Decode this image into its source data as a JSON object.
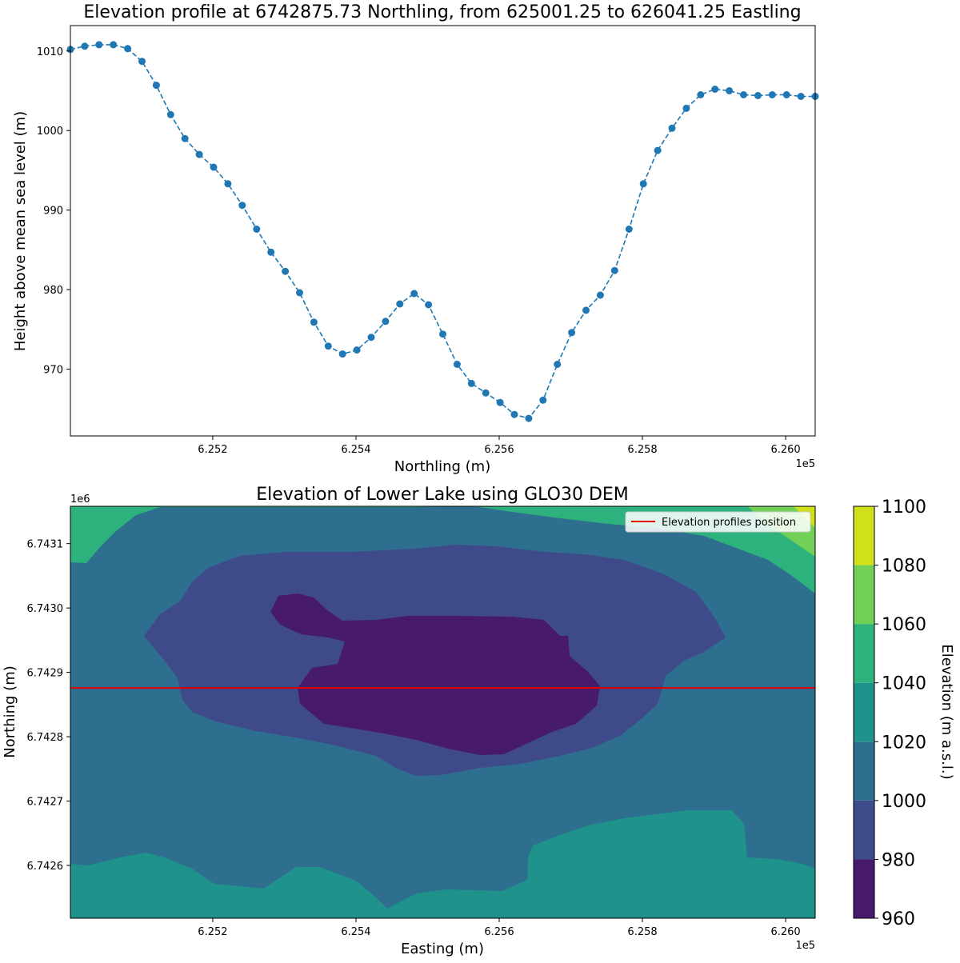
{
  "chart_data": [
    {
      "type": "line",
      "title": "Elevation profile at 6742875.73 Northling, from 625001.25 to 626041.25 Eastling",
      "xlabel": "Northling (m)",
      "ylabel": "Height above mean sea level (m)",
      "x_offset_label": "1e5",
      "xlim": [
        625001.25,
        626041.25
      ],
      "ylim": [
        961.6,
        1013.2
      ],
      "x_ticks": [
        625200,
        625400,
        625600,
        625800,
        626000
      ],
      "x_tick_labels": [
        "6.252",
        "6.254",
        "6.256",
        "6.258",
        "6.260"
      ],
      "y_ticks": [
        970,
        980,
        990,
        1000,
        1010
      ],
      "y_tick_labels": [
        "970",
        "980",
        "990",
        "1000",
        "1010"
      ],
      "series": [
        {
          "color": "#1f77b4",
          "line_style": "dashed",
          "marker": "circle",
          "x": [
            625001.25,
            625021.25,
            625041.25,
            625061.25,
            625081.25,
            625101.25,
            625121.25,
            625141.25,
            625161.25,
            625181.25,
            625201.25,
            625221.25,
            625241.25,
            625261.25,
            625281.25,
            625301.25,
            625321.25,
            625341.25,
            625361.25,
            625381.25,
            625401.25,
            625421.25,
            625441.25,
            625461.25,
            625481.25,
            625501.25,
            625521.25,
            625541.25,
            625561.25,
            625581.25,
            625601.25,
            625621.25,
            625641.25,
            625661.25,
            625681.25,
            625701.25,
            625721.25,
            625741.25,
            625761.25,
            625781.25,
            625801.25,
            625821.25,
            625841.25,
            625861.25,
            625881.25,
            625901.25,
            625921.25,
            625941.25,
            625961.25,
            625981.25,
            626001.25,
            626021.25,
            626041.25
          ],
          "y": [
            1010.2,
            1010.6,
            1010.8,
            1010.8,
            1010.3,
            1008.7,
            1005.7,
            1002.0,
            999.0,
            997.0,
            995.4,
            993.3,
            990.6,
            987.6,
            984.7,
            982.3,
            979.6,
            975.9,
            972.9,
            971.9,
            972.4,
            974.0,
            976.0,
            978.2,
            979.5,
            978.1,
            974.4,
            970.6,
            968.2,
            967.0,
            965.8,
            964.3,
            963.8,
            966.1,
            970.6,
            974.6,
            977.4,
            979.3,
            982.4,
            987.6,
            993.3,
            997.5,
            1000.3,
            1002.8,
            1004.5,
            1005.2,
            1005.0,
            1004.5,
            1004.4,
            1004.5,
            1004.5,
            1004.3,
            1004.3
          ]
        }
      ]
    },
    {
      "type": "heatmap",
      "title": "Elevation of Lower Lake using GLO30 DEM",
      "xlabel": "Easting (m)",
      "ylabel": "Northing (m)",
      "x_offset_label": "1e5",
      "y_offset_label": "1e6",
      "xlim": [
        625001.25,
        626041.25
      ],
      "ylim": [
        6742518,
        6743158
      ],
      "x_ticks": [
        625200,
        625400,
        625600,
        625800,
        626000
      ],
      "x_tick_labels": [
        "6.252",
        "6.254",
        "6.256",
        "6.258",
        "6.260"
      ],
      "y_ticks": [
        6742600,
        6742700,
        6742800,
        6742900,
        6743000,
        6743100
      ],
      "y_tick_labels": [
        "6.7426",
        "6.7427",
        "6.7428",
        "6.7429",
        "6.7430",
        "6.7431"
      ],
      "colorbar_label": "Elevation (m a.s.l.)",
      "levels": [
        960,
        980,
        1000,
        1020,
        1040,
        1060,
        1080,
        1100
      ],
      "level_tick_labels": [
        "960",
        "980",
        "1000",
        "1020",
        "1040",
        "1060",
        "1080",
        "1100"
      ],
      "level_colors": [
        "#481a6c",
        "#3e4a89",
        "#2e6e8e",
        "#20928c",
        "#2db27d",
        "#73d056",
        "#d0e11c"
      ],
      "profile_line": {
        "northing": 6742875.73,
        "color": "#e00000",
        "legend_label": "Elevation profiles position"
      },
      "legend_position": "top-right"
    }
  ]
}
